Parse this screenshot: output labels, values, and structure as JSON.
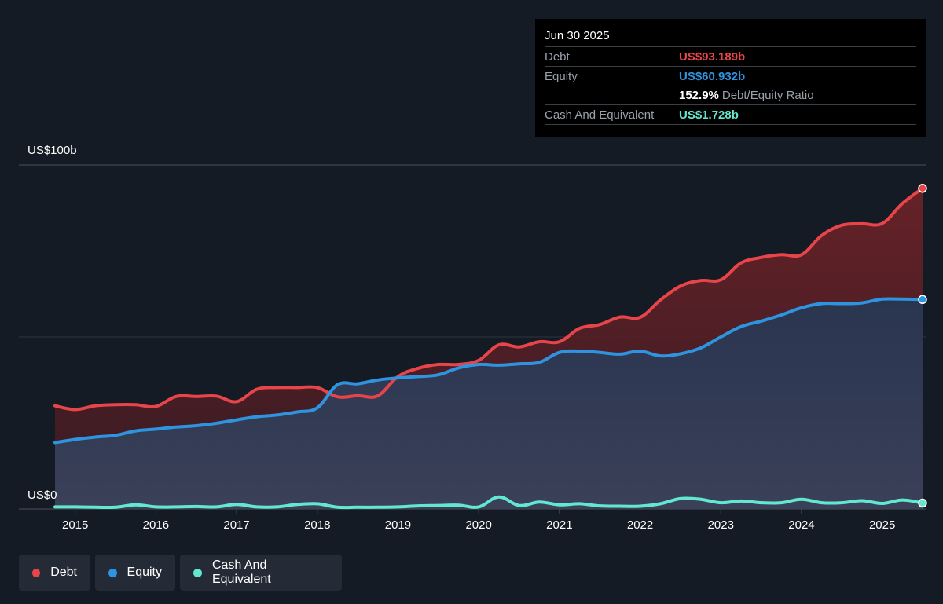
{
  "colors": {
    "debt": "#e8454a",
    "equity": "#2f94e0",
    "cash": "#62e8d0",
    "background": "#151b24"
  },
  "tooltip": {
    "date": "Jun 30 2025",
    "debt_label": "Debt",
    "debt_value": "US$93.189b",
    "equity_label": "Equity",
    "equity_value": "US$60.932b",
    "ratio_value": "152.9%",
    "ratio_label": "Debt/Equity Ratio",
    "cash_label": "Cash And Equivalent",
    "cash_value": "US$1.728b"
  },
  "legend": {
    "debt": "Debt",
    "equity": "Equity",
    "cash": "Cash And Equivalent"
  },
  "chart_data": {
    "type": "area",
    "y_top_label": "US$100b",
    "y_bottom_label": "US$0",
    "ylim": [
      0,
      100
    ],
    "xlim": [
      2014.75,
      2025.5
    ],
    "xticks": [
      2015,
      2016,
      2017,
      2018,
      2019,
      2020,
      2021,
      2022,
      2023,
      2024,
      2025
    ],
    "grid": true,
    "series": [
      {
        "name": "Debt",
        "x": [
          2014.75,
          2015.0,
          2015.25,
          2015.5,
          2015.75,
          2016.0,
          2016.25,
          2016.5,
          2016.75,
          2017.0,
          2017.25,
          2017.5,
          2017.75,
          2018.0,
          2018.25,
          2018.5,
          2018.75,
          2019.0,
          2019.25,
          2019.5,
          2019.75,
          2020.0,
          2020.25,
          2020.5,
          2020.75,
          2021.0,
          2021.25,
          2021.5,
          2021.75,
          2022.0,
          2022.25,
          2022.5,
          2022.75,
          2023.0,
          2023.25,
          2023.5,
          2023.75,
          2024.0,
          2024.25,
          2024.5,
          2024.75,
          2025.0,
          2025.25,
          2025.5
        ],
        "values": [
          30.0,
          28.9,
          30.0,
          30.3,
          30.3,
          29.8,
          32.7,
          32.7,
          32.8,
          31.2,
          34.8,
          35.3,
          35.3,
          35.3,
          32.6,
          32.9,
          32.9,
          38.5,
          40.9,
          42.0,
          42.0,
          43.2,
          47.7,
          47.1,
          48.6,
          48.6,
          52.5,
          53.6,
          55.8,
          55.7,
          60.7,
          64.8,
          66.4,
          66.6,
          71.5,
          73.1,
          73.9,
          73.9,
          79.5,
          82.5,
          82.9,
          83.0,
          88.8,
          93.2
        ]
      },
      {
        "name": "Equity",
        "x": [
          2014.75,
          2015.0,
          2015.25,
          2015.5,
          2015.75,
          2016.0,
          2016.25,
          2016.5,
          2016.75,
          2017.0,
          2017.25,
          2017.5,
          2017.75,
          2018.0,
          2018.25,
          2018.5,
          2018.75,
          2019.0,
          2019.25,
          2019.5,
          2019.75,
          2020.0,
          2020.25,
          2020.5,
          2020.75,
          2021.0,
          2021.25,
          2021.5,
          2021.75,
          2022.0,
          2022.25,
          2022.5,
          2022.75,
          2023.0,
          2023.25,
          2023.5,
          2023.75,
          2024.0,
          2024.25,
          2024.5,
          2024.75,
          2025.0,
          2025.25,
          2025.5
        ],
        "values": [
          19.3,
          20.2,
          20.9,
          21.4,
          22.7,
          23.2,
          23.8,
          24.2,
          24.9,
          25.9,
          26.8,
          27.3,
          28.2,
          29.4,
          36.1,
          36.4,
          37.5,
          38.1,
          38.5,
          39.0,
          41.0,
          42.0,
          41.8,
          42.2,
          42.6,
          45.5,
          45.9,
          45.5,
          45.0,
          45.9,
          44.5,
          45.1,
          46.8,
          50.0,
          53.0,
          54.6,
          56.4,
          58.5,
          59.7,
          59.7,
          59.9,
          61.0,
          61.0,
          60.9
        ]
      },
      {
        "name": "Cash And Equivalent",
        "x": [
          2014.75,
          2015.0,
          2015.25,
          2015.5,
          2015.75,
          2016.0,
          2016.25,
          2016.5,
          2016.75,
          2017.0,
          2017.25,
          2017.5,
          2017.75,
          2018.0,
          2018.25,
          2018.5,
          2018.75,
          2019.0,
          2019.25,
          2019.5,
          2019.75,
          2020.0,
          2020.25,
          2020.5,
          2020.75,
          2021.0,
          2021.25,
          2021.5,
          2021.75,
          2022.0,
          2022.25,
          2022.5,
          2022.75,
          2023.0,
          2023.25,
          2023.5,
          2023.75,
          2024.0,
          2024.25,
          2024.5,
          2024.75,
          2025.0,
          2025.25,
          2025.5
        ],
        "values": [
          0.6,
          0.6,
          0.5,
          0.5,
          1.2,
          0.6,
          0.6,
          0.7,
          0.6,
          1.3,
          0.6,
          0.6,
          1.3,
          1.5,
          0.5,
          0.5,
          0.5,
          0.6,
          0.9,
          1.0,
          1.1,
          0.6,
          3.5,
          1.0,
          2.0,
          1.2,
          1.5,
          0.9,
          0.8,
          0.8,
          1.5,
          3.0,
          2.8,
          1.8,
          2.3,
          1.8,
          1.8,
          2.8,
          1.8,
          1.8,
          2.4,
          1.6,
          2.6,
          1.7
        ]
      }
    ]
  }
}
